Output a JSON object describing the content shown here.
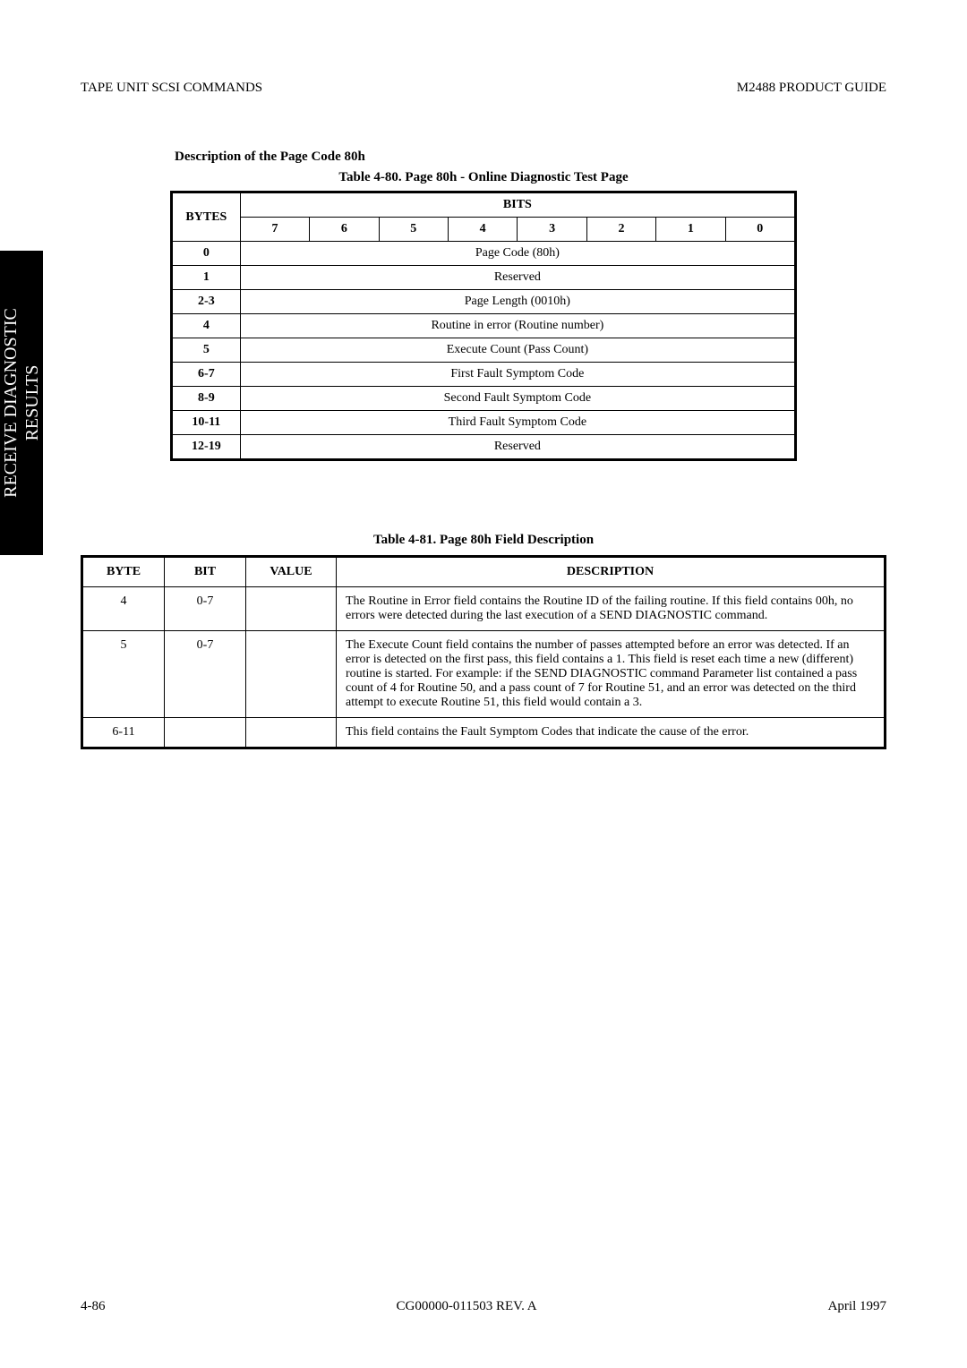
{
  "header": {
    "left": "TAPE UNIT SCSI COMMANDS",
    "right": "M2488 PRODUCT GUIDE"
  },
  "sideTab": {
    "line1": "RECEIVE DIAGNOSTIC",
    "line2": "RESULTS"
  },
  "sectionTitle": "Description of the Page Code 80h",
  "table1": {
    "caption": "Table 4-80.   Page 80h - Online Diagnostic Test Page",
    "bitsLabel": "BITS",
    "bytesLabel": "BYTES",
    "bitHeaders": [
      "7",
      "6",
      "5",
      "4",
      "3",
      "2",
      "1",
      "0"
    ],
    "rows": [
      {
        "byte": "0",
        "text": "Page Code (80h)"
      },
      {
        "byte": "1",
        "text": "Reserved"
      },
      {
        "byte": "2-3",
        "text": "Page Length (0010h)"
      },
      {
        "byte": "4",
        "text": "Routine in error (Routine number)"
      },
      {
        "byte": "5",
        "text": "Execute Count (Pass Count)"
      },
      {
        "byte": "6-7",
        "text": "First Fault Symptom Code"
      },
      {
        "byte": "8-9",
        "text": "Second Fault Symptom Code"
      },
      {
        "byte": "10-11",
        "text": "Third Fault Symptom Code"
      },
      {
        "byte": "12-19",
        "text": "Reserved"
      }
    ]
  },
  "table2": {
    "caption": "Table 4-81.   Page 80h Field Description",
    "headers": {
      "byte": "BYTE",
      "bit": "BIT",
      "value": "VALUE",
      "desc": "DESCRIPTION"
    },
    "rows": [
      {
        "byte": "4",
        "bit": "0-7",
        "value": "",
        "desc": "The Routine in Error field contains the Routine ID of the failing routine. If this field contains 00h, no errors were detected during the last execution of a SEND DIAGNOSTIC command."
      },
      {
        "byte": "5",
        "bit": "0-7",
        "value": "",
        "desc": "The Execute Count field contains the number of passes attempted before an error was detected. If an error is detected on the first pass, this field contains a 1. This field is reset each time a new (different) routine is started. For example: if the SEND DIAGNOSTIC command Parameter list contained a pass count of 4 for Routine 50, and a pass count of 7 for Routine 51, and an error was detected on the third attempt to execute Routine 51, this field would contain a 3."
      },
      {
        "byte": "6-11",
        "bit": "",
        "value": "",
        "desc": "This field contains the Fault Symptom Codes that indicate the cause of the error."
      }
    ]
  },
  "footer": {
    "left": "4-86",
    "center": "CG00000-011503 REV. A",
    "right": "April 1997"
  }
}
